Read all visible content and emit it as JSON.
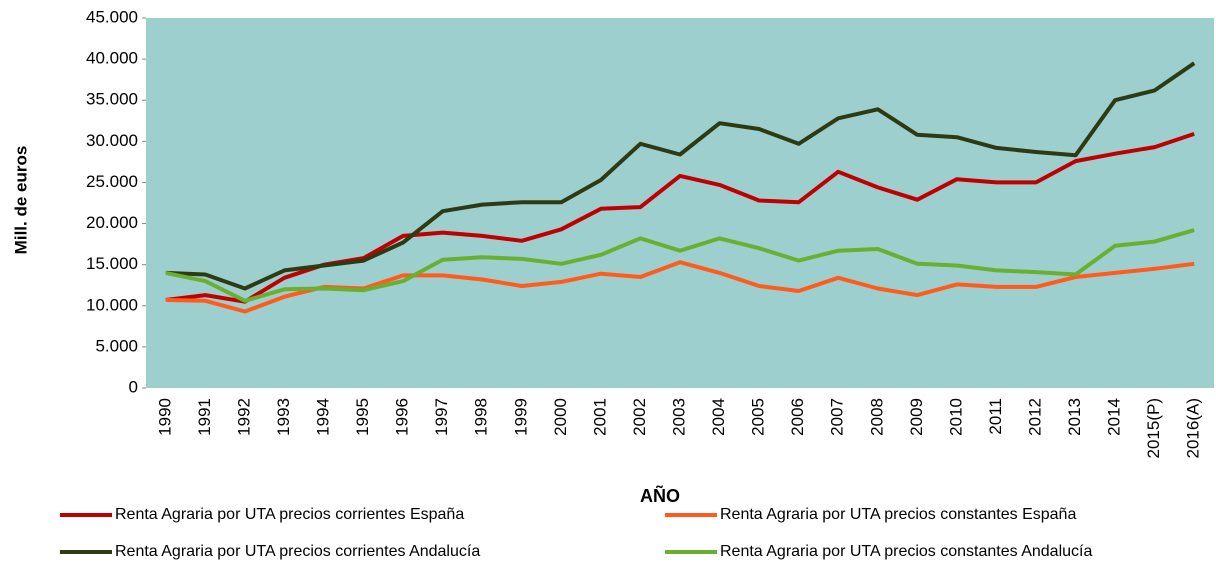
{
  "chart_data": {
    "type": "line",
    "x_label": "AÑO",
    "y_label": "Mill. de euros",
    "categories": [
      "1990",
      "1991",
      "1992",
      "1993",
      "1994",
      "1995",
      "1996",
      "1997",
      "1998",
      "1999",
      "2000",
      "2001",
      "2002",
      "2003",
      "2004",
      "2005",
      "2006",
      "2007",
      "2008",
      "2009",
      "2010",
      "2011",
      "2012",
      "2013",
      "2014",
      "2015(P)",
      "2016(A)"
    ],
    "series": [
      {
        "name": "Renta Agraria por UTA precios corrientes España",
        "color": "#c00000",
        "values": [
          10700,
          11300,
          10500,
          13400,
          15000,
          15800,
          18500,
          18900,
          18500,
          17900,
          19300,
          21800,
          22000,
          25800,
          24700,
          22800,
          22600,
          26300,
          24400,
          22900,
          25400,
          25000,
          25000,
          27600,
          28500,
          29300,
          30900
        ]
      },
      {
        "name": "Renta Agraria por UTA precios constantes España",
        "color": "#ff5b1c",
        "values": [
          10700,
          10600,
          9300,
          11100,
          12300,
          12100,
          13700,
          13700,
          13200,
          12400,
          12900,
          13900,
          13500,
          15300,
          14000,
          12400,
          11800,
          13400,
          12100,
          11300,
          12600,
          12300,
          12300,
          13500,
          14000,
          14500,
          15100
        ]
      },
      {
        "name": "Renta Agraria por UTA precios corrientes Andalucía",
        "color": "#2e3b12",
        "values": [
          14000,
          13800,
          12100,
          14300,
          14900,
          15500,
          17700,
          21500,
          22300,
          22600,
          22600,
          25300,
          29700,
          28400,
          32200,
          31500,
          29700,
          32800,
          33900,
          30800,
          30500,
          29200,
          28700,
          28300,
          35000,
          36200,
          39500
        ]
      },
      {
        "name": "Renta Agraria por UTA precios constantes Andalucía",
        "color": "#6aaf30",
        "values": [
          14000,
          13000,
          10600,
          12000,
          12100,
          11900,
          13000,
          15600,
          15900,
          15700,
          15100,
          16200,
          18200,
          16700,
          18200,
          17000,
          15500,
          16700,
          16900,
          15100,
          14900,
          14300,
          14100,
          13800,
          17300,
          17800,
          19200
        ]
      }
    ],
    "ylim": [
      0,
      45000
    ],
    "yticks": [
      0,
      {
        "value": 5000,
        "label": "5.000"
      },
      {
        "value": 10000,
        "label": "10.000"
      },
      {
        "value": 15000,
        "label": "15.000"
      },
      {
        "value": 20000,
        "label": "20.000"
      },
      {
        "value": 25000,
        "label": "25.000"
      },
      {
        "value": 30000,
        "label": "30.000"
      },
      {
        "value": 35000,
        "label": "35.000"
      },
      {
        "value": 40000,
        "label": "40.000"
      },
      {
        "value": 45000,
        "label": "45.000"
      }
    ],
    "plot_background": "#9ecfcf"
  }
}
